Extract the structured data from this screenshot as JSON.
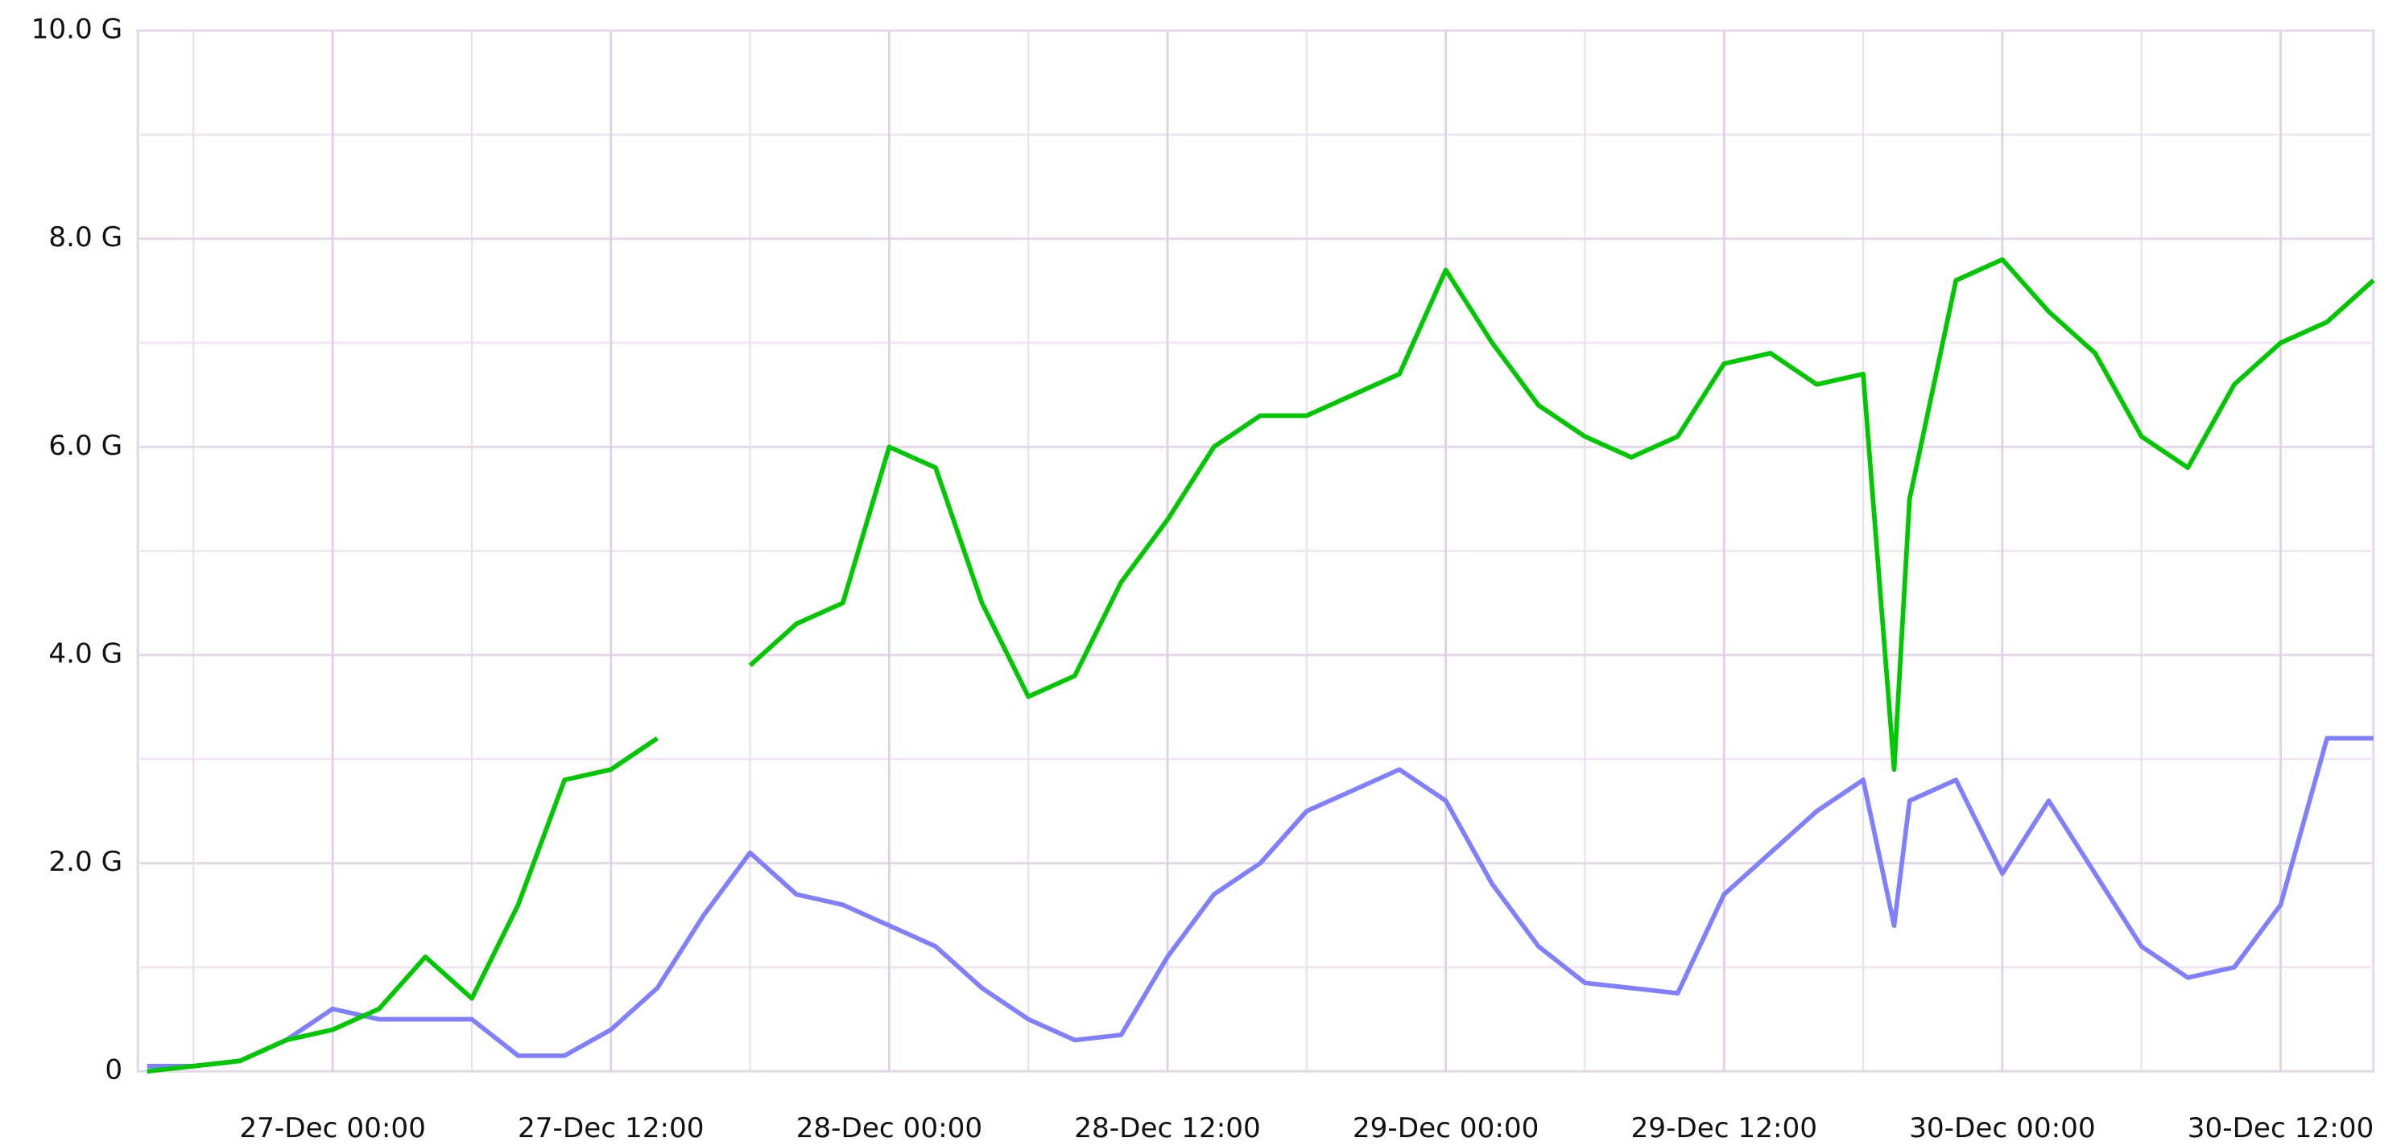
{
  "chart_data": {
    "type": "line",
    "x": [
      "26-Dec 16:00",
      "26-Dec 18:00",
      "26-Dec 20:00",
      "26-Dec 22:00",
      "27-Dec 00:00",
      "27-Dec 02:00",
      "27-Dec 04:00",
      "27-Dec 06:00",
      "27-Dec 08:00",
      "27-Dec 10:00",
      "27-Dec 12:00",
      "27-Dec 14:00",
      "27-Dec 16:00",
      "27-Dec 18:00",
      "27-Dec 20:00",
      "27-Dec 22:00",
      "28-Dec 00:00",
      "28-Dec 02:00",
      "28-Dec 04:00",
      "28-Dec 06:00",
      "28-Dec 08:00",
      "28-Dec 10:00",
      "28-Dec 12:00",
      "28-Dec 14:00",
      "28-Dec 16:00",
      "28-Dec 18:00",
      "28-Dec 20:00",
      "28-Dec 22:00",
      "29-Dec 00:00",
      "29-Dec 02:00",
      "29-Dec 04:00",
      "29-Dec 06:00",
      "29-Dec 08:00",
      "29-Dec 10:00",
      "29-Dec 12:00",
      "29-Dec 14:00",
      "29-Dec 16:00",
      "29-Dec 18:00",
      "29-Dec 19:20",
      "29-Dec 20:00",
      "29-Dec 22:00",
      "30-Dec 00:00",
      "30-Dec 02:00",
      "30-Dec 04:00",
      "30-Dec 06:00",
      "30-Dec 08:00",
      "30-Dec 10:00",
      "30-Dec 12:00",
      "30-Dec 14:00",
      "30-Dec 16:00"
    ],
    "series": [
      {
        "color": "#00c800",
        "values": [
          0,
          0.05,
          0.1,
          0.3,
          0.4,
          0.6,
          1.1,
          0.7,
          1.6,
          2.8,
          2.9,
          3.2,
          null,
          3.9,
          4.3,
          4.5,
          6.0,
          5.8,
          4.5,
          3.6,
          3.8,
          4.7,
          5.3,
          6.0,
          6.3,
          6.3,
          6.5,
          6.7,
          7.7,
          7.0,
          6.4,
          6.1,
          5.9,
          6.1,
          6.8,
          6.9,
          6.6,
          6.7,
          2.9,
          5.5,
          7.6,
          7.8,
          7.3,
          6.9,
          6.1,
          5.8,
          6.6,
          7.0,
          7.2,
          7.6
        ]
      },
      {
        "color": "#8080ff",
        "values": [
          0.05,
          0.05,
          0.1,
          0.3,
          0.6,
          0.5,
          0.5,
          0.5,
          0.15,
          0.15,
          0.4,
          0.8,
          1.5,
          2.1,
          1.7,
          1.6,
          1.4,
          1.2,
          0.8,
          0.5,
          0.3,
          0.35,
          1.1,
          1.7,
          2.0,
          2.5,
          2.7,
          2.9,
          2.6,
          1.8,
          1.2,
          0.85,
          0.8,
          0.75,
          1.7,
          2.1,
          2.5,
          2.8,
          1.4,
          2.6,
          2.8,
          1.9,
          2.6,
          1.9,
          1.2,
          0.9,
          1.0,
          1.6,
          3.2,
          3.2
        ]
      }
    ],
    "xlim": [
      "26-Dec 15:36",
      "30-Dec 16:00"
    ],
    "xticks": [
      "27-Dec 00:00",
      "27-Dec 12:00",
      "28-Dec 00:00",
      "28-Dec 12:00",
      "29-Dec 00:00",
      "29-Dec 12:00",
      "30-Dec 00:00",
      "30-Dec 12:00"
    ],
    "minor_xticks": [
      "26-Dec 18:00",
      "27-Dec 06:00",
      "27-Dec 18:00",
      "28-Dec 06:00",
      "28-Dec 18:00",
      "29-Dec 06:00",
      "29-Dec 18:00",
      "30-Dec 06:00"
    ],
    "ylim": [
      0,
      10
    ],
    "yticks": [
      0,
      {
        "value": 2,
        "label": "2.0 G"
      },
      {
        "value": 4,
        "label": "4.0 G"
      },
      {
        "value": 6,
        "label": "6.0 G"
      },
      {
        "value": 8,
        "label": "8.0 G"
      },
      {
        "value": 10,
        "label": "10.0 G"
      }
    ],
    "minor_yticks": [
      1,
      3,
      5,
      7,
      9
    ],
    "grid": true
  }
}
